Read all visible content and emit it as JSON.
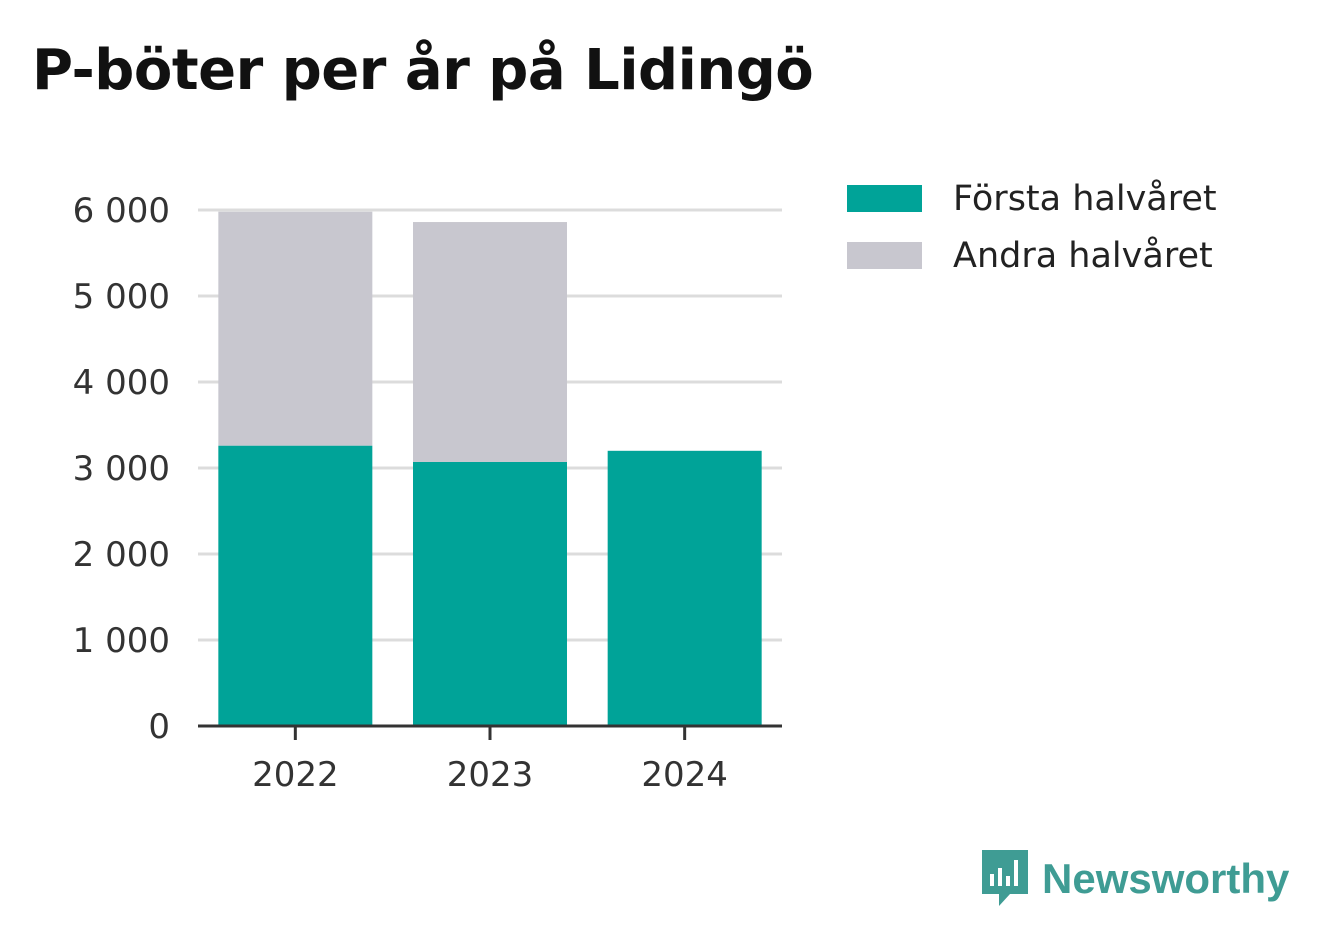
{
  "title": "P-böter per år på Lidingö",
  "brand": {
    "name": "Newsworthy",
    "icon": "newsworthy-logo-icon",
    "color": "#3f9c94"
  },
  "chart_data": {
    "type": "bar",
    "stacked": true,
    "title": "P-böter per år på Lidingö",
    "xlabel": "",
    "ylabel": "",
    "categories": [
      "2022",
      "2023",
      "2024"
    ],
    "series": [
      {
        "name": "Första halvåret",
        "color": "#00a398",
        "values": [
          3260,
          3070,
          3200
        ]
      },
      {
        "name": "Andra halvåret",
        "color": "#c8c7cf",
        "values": [
          2720,
          2790,
          0
        ]
      }
    ],
    "ylim": [
      0,
      6000
    ],
    "yticks": [
      0,
      1000,
      2000,
      3000,
      4000,
      5000,
      6000
    ],
    "ytick_labels": [
      "0",
      "1 000",
      "2 000",
      "3 000",
      "4 000",
      "5 000",
      "6 000"
    ],
    "grid": true,
    "legend": "top-right"
  }
}
